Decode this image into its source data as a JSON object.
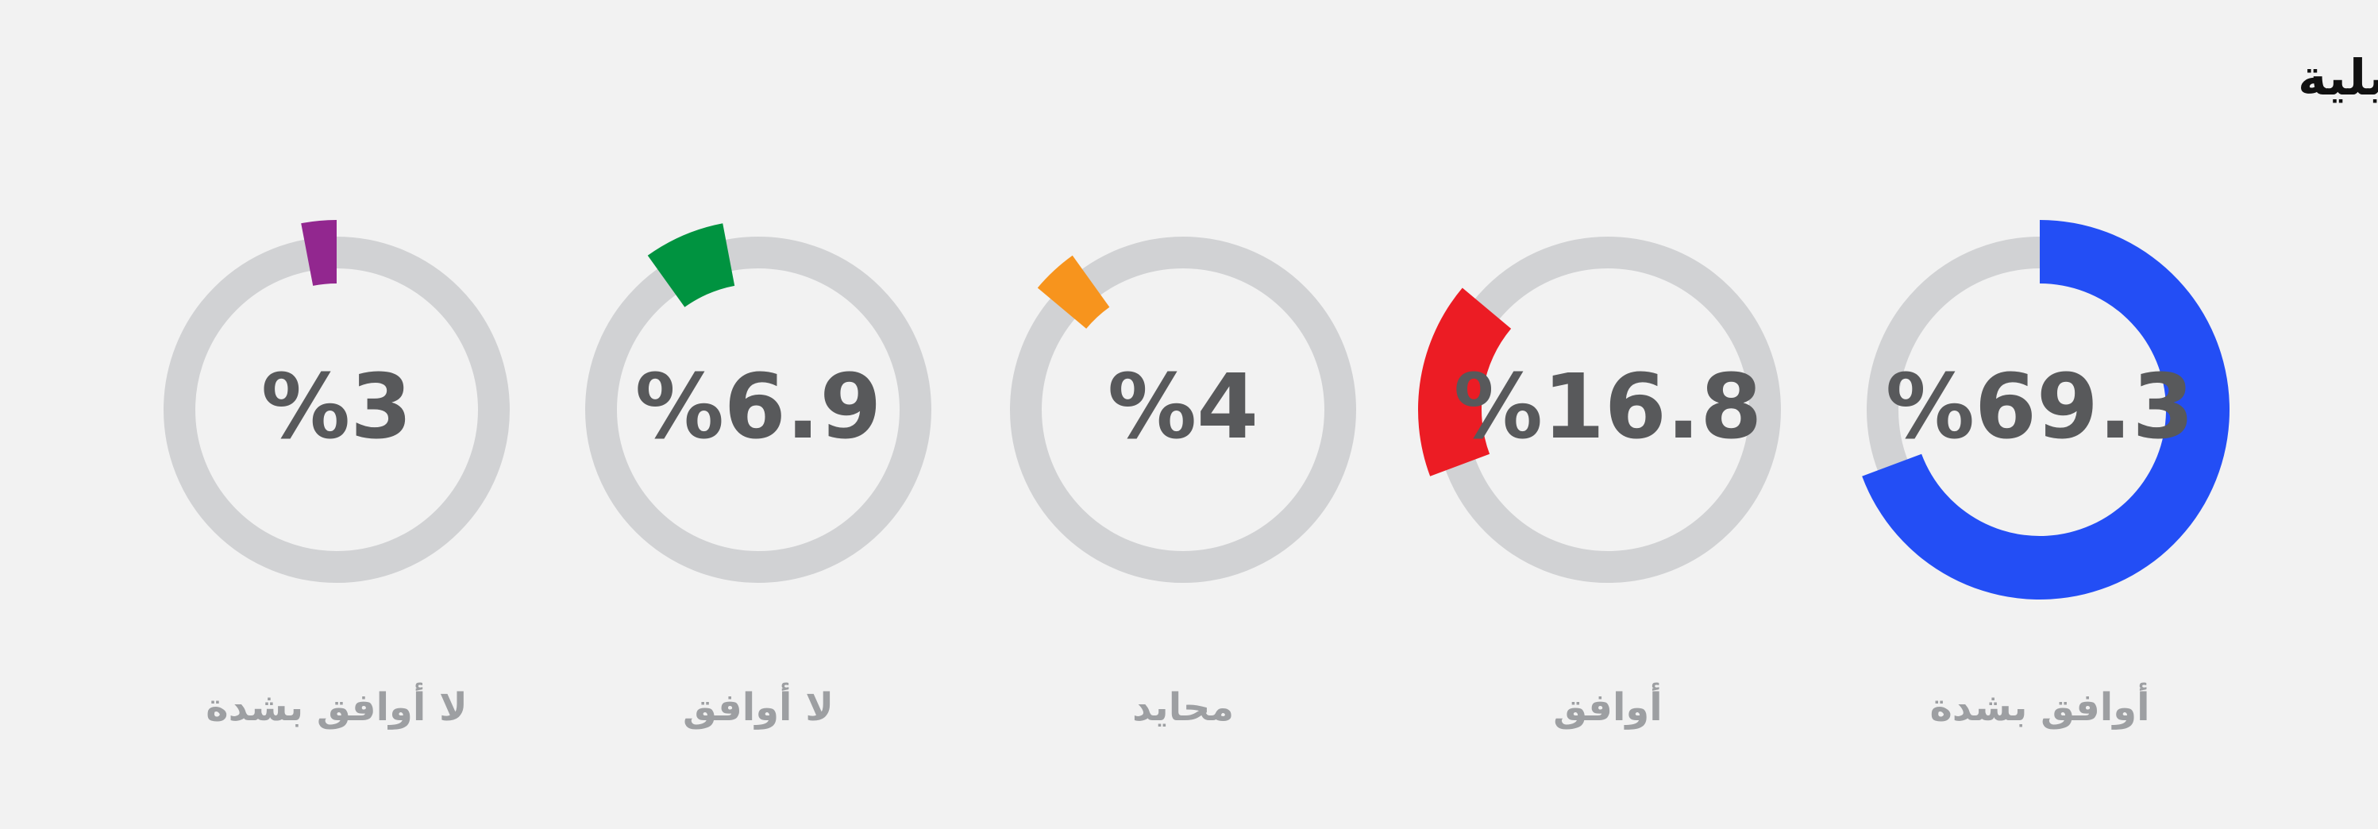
{
  "chart_data": {
    "type": "gauge",
    "title": "\"طوفان الأقصى\" استجابة موضوعية للانتهاكات الإسرائيلية",
    "categories": [
      "أوافق بشدة",
      "أوافق",
      "محايد",
      "لا أوافق",
      "لا أوافق بشدة"
    ],
    "values": [
      69.3,
      16.8,
      4,
      6.9,
      3
    ],
    "value_labels": [
      "%69.3",
      "%16.8",
      "%4",
      "%6.9",
      "%3"
    ],
    "colors": [
      "#234ef5",
      "#ec1c24",
      "#f7941d",
      "#009340",
      "#92278f"
    ],
    "track_color": "#d1d2d4"
  }
}
